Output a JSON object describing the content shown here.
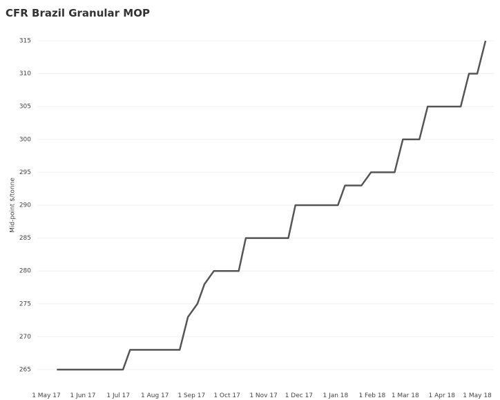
{
  "chart_data": {
    "type": "line",
    "title": "CFR Brazil Granular MOP",
    "ylabel": "Mid-point $/tonne",
    "x": [
      "2017-05-10",
      "2017-07-05",
      "2017-07-11",
      "2017-08-22",
      "2017-08-29",
      "2017-09-06",
      "2017-09-12",
      "2017-09-20",
      "2017-10-11",
      "2017-10-17",
      "2017-11-22",
      "2017-11-28",
      "2018-01-03",
      "2018-01-09",
      "2018-01-23",
      "2018-01-31",
      "2018-02-20",
      "2018-02-27",
      "2018-03-13",
      "2018-03-20",
      "2018-04-17",
      "2018-04-24",
      "2018-05-01",
      "2018-05-08"
    ],
    "series": [
      {
        "name": "CFR Brazil Granular MOP",
        "color": "#555555",
        "values": [
          265,
          265,
          268,
          268,
          273,
          275,
          278,
          280,
          280,
          285,
          285,
          290,
          290,
          293,
          293,
          295,
          295,
          300,
          300,
          305,
          305,
          310,
          310,
          315
        ]
      }
    ],
    "xlim": [
      "2017-04-24",
      "2018-05-15"
    ],
    "xticks": [
      {
        "value": "2017-05-01",
        "label": "1 May 17"
      },
      {
        "value": "2017-06-01",
        "label": "1 Jun 17"
      },
      {
        "value": "2017-07-01",
        "label": "1 Jul 17"
      },
      {
        "value": "2017-08-01",
        "label": "1 Aug 17"
      },
      {
        "value": "2017-09-01",
        "label": "1 Sep 17"
      },
      {
        "value": "2017-10-01",
        "label": "1 Oct 17"
      },
      {
        "value": "2017-11-01",
        "label": "1 Nov 17"
      },
      {
        "value": "2017-12-01",
        "label": "1 Dec 17"
      },
      {
        "value": "2018-01-01",
        "label": "1 Jan 18"
      },
      {
        "value": "2018-02-01",
        "label": "1 Feb 18"
      },
      {
        "value": "2018-03-01",
        "label": "1 Mar 18"
      },
      {
        "value": "2018-04-01",
        "label": "1 Apr 18"
      },
      {
        "value": "2018-05-01",
        "label": "1 May 18"
      }
    ],
    "ylim": [
      264,
      316
    ],
    "yticks": [
      265,
      270,
      275,
      280,
      285,
      290,
      295,
      300,
      305,
      310,
      315
    ],
    "grid": true
  }
}
